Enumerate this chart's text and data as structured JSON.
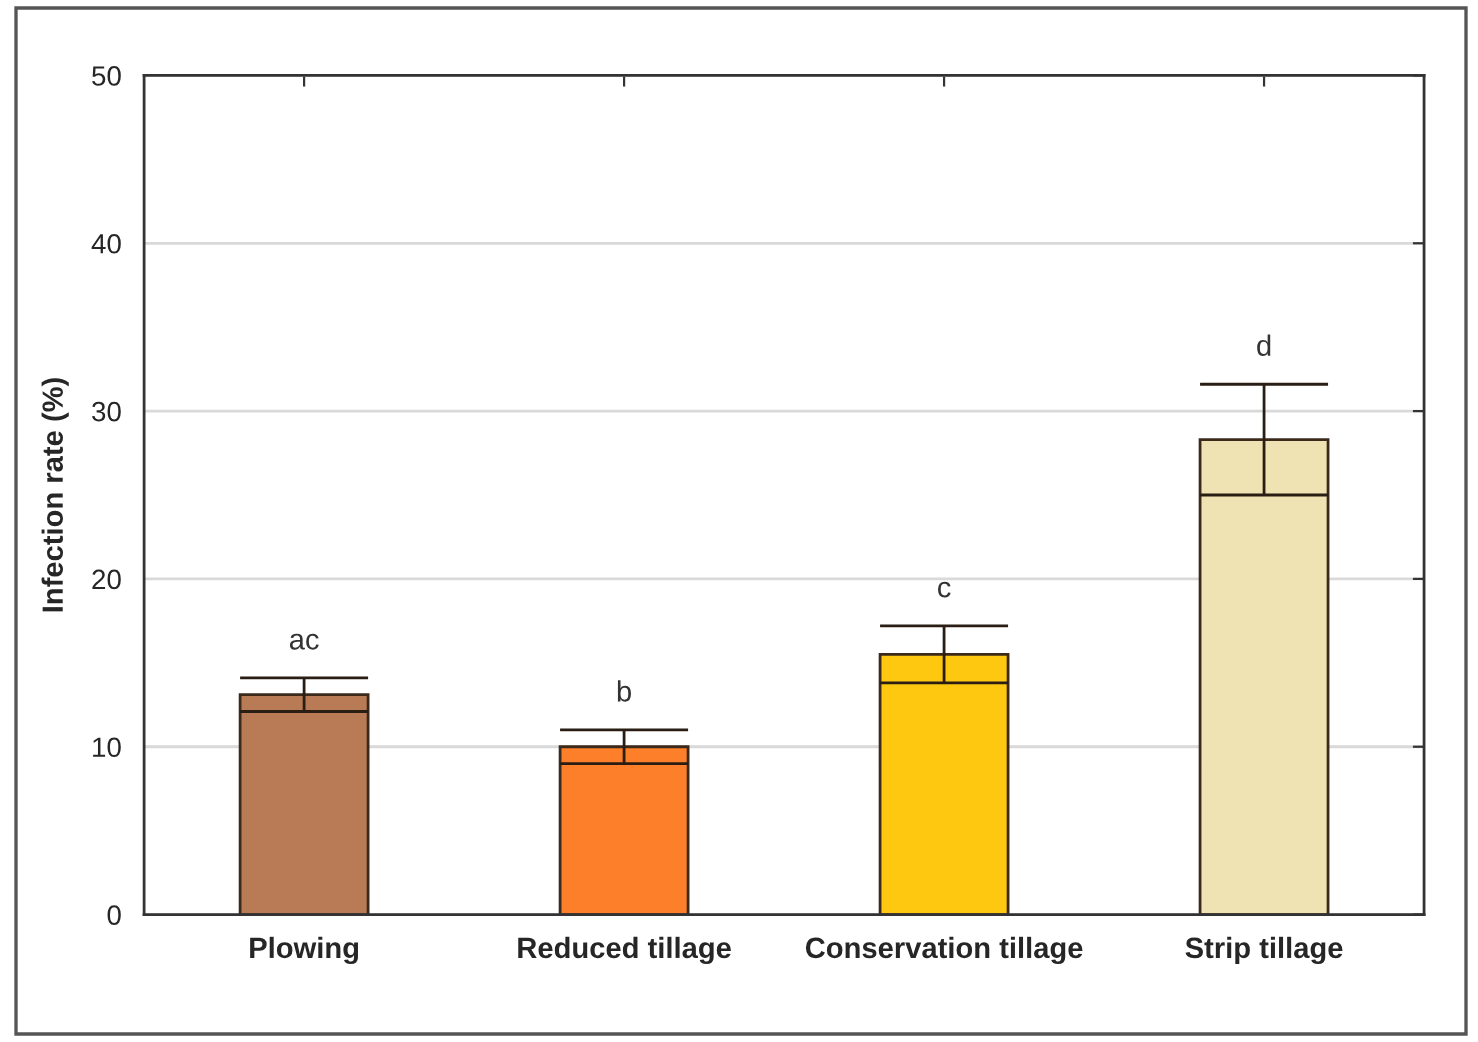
{
  "chart_data": {
    "type": "bar",
    "ylabel": "Infection rate (%)",
    "categories": [
      "Plowing",
      "Reduced tillage",
      "Conservation tillage",
      "Strip tillage"
    ],
    "values": [
      13.1,
      10.0,
      15.5,
      28.3
    ],
    "colors": [
      "#b97a56",
      "#fd7f29",
      "#fec811",
      "#efe2b3"
    ],
    "errors": [
      1.0,
      1.0,
      1.7,
      3.3
    ],
    "ylim": [
      0,
      50
    ],
    "yticks": [
      0,
      10,
      20,
      30,
      40,
      50
    ],
    "grid": "y",
    "annotations": [
      "ac",
      "b",
      "c",
      "d"
    ]
  }
}
